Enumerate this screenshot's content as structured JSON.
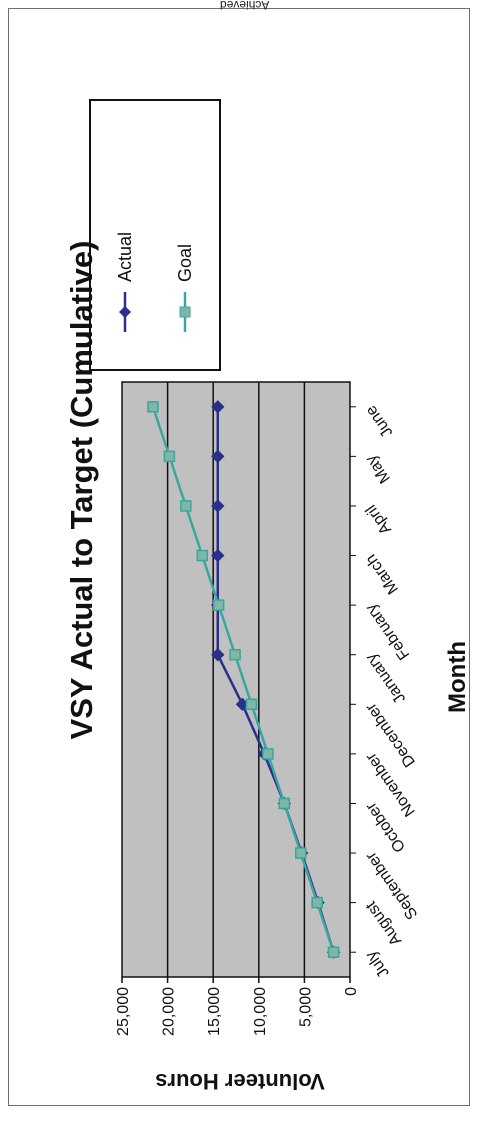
{
  "cut_off_text": "Achieved",
  "chart_data": {
    "type": "line",
    "title": "VSY Actual to Target (Cumulative)",
    "xlabel": "Month",
    "ylabel": "Volunteer Hours",
    "categories": [
      "July",
      "August",
      "September",
      "October",
      "November",
      "December",
      "January",
      "February",
      "March",
      "April",
      "May",
      "June"
    ],
    "ylim": [
      0,
      25000
    ],
    "yticks": [
      0,
      5000,
      10000,
      15000,
      20000,
      25000
    ],
    "ytick_labels": [
      "0",
      "5,000",
      "10,000",
      "15,000",
      "20,000",
      "25,000"
    ],
    "grid": true,
    "legend": "right",
    "series": [
      {
        "name": "Actual",
        "values": [
          1800,
          3500,
          5300,
          7200,
          9400,
          11800,
          14500,
          14500,
          14500,
          14500,
          14500,
          14500
        ],
        "color": "#2b2f8a",
        "marker": "diamond"
      },
      {
        "name": "Goal",
        "values": [
          1800,
          3600,
          5400,
          7200,
          9000,
          10800,
          12600,
          14400,
          16200,
          18000,
          19800,
          21600
        ],
        "color": "#3aa6a0",
        "marker": "square"
      }
    ],
    "plot_background": "#c0c0c0"
  }
}
